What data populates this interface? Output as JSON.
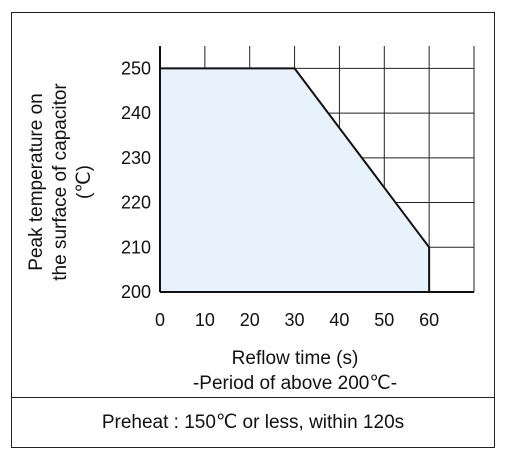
{
  "chart_data": {
    "type": "area",
    "xlabel": "Reflow time (s)",
    "xlabel_sub": "-Period of above 200℃-",
    "ylabel_lines": [
      "Peak temperature on",
      "the surface of capacitor",
      "(℃)"
    ],
    "x_ticks": [
      "0",
      "10",
      "20",
      "30",
      "40",
      "50",
      "60"
    ],
    "y_ticks": [
      "200",
      "210",
      "220",
      "230",
      "240",
      "250"
    ],
    "xlim": [
      0,
      70
    ],
    "ylim": [
      200,
      255
    ],
    "grid": true,
    "fill_color": "#e8f2fc",
    "line_color": "#111111",
    "series": [
      {
        "x": [
          0,
          30,
          60,
          60
        ],
        "y": [
          250,
          250,
          210,
          200
        ]
      }
    ]
  },
  "footer": {
    "text": "Preheat : 150℃ or less, within 120s"
  }
}
